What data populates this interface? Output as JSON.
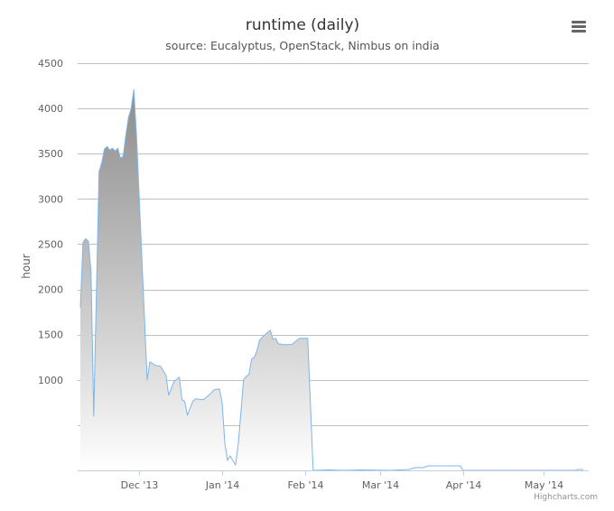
{
  "chart_data": {
    "type": "area",
    "title": "runtime (daily)",
    "subtitle": "source: Eucalyptus, OpenStack, Nimbus on india",
    "xlabel": "",
    "ylabel": "hour",
    "ylim": [
      0,
      4500
    ],
    "y_ticks": [
      {
        "value": 1000,
        "label": "1000"
      },
      {
        "value": 1500,
        "label": "1500"
      },
      {
        "value": 2000,
        "label": "2000"
      },
      {
        "value": 2500,
        "label": "2500"
      },
      {
        "value": 3000,
        "label": "3000"
      },
      {
        "value": 3500,
        "label": "3500"
      },
      {
        "value": 4000,
        "label": "4000"
      },
      {
        "value": 4500,
        "label": "4500"
      }
    ],
    "gridlines_at": [
      0,
      500,
      1000,
      1500,
      2000,
      2500,
      3000,
      3500,
      4000,
      4500
    ],
    "xlim": [
      "2013-11-08",
      "2014-05-18"
    ],
    "x_ticks": [
      {
        "date": "2013-12-01",
        "label": "Dec '13"
      },
      {
        "date": "2014-01-01",
        "label": "Jan '14"
      },
      {
        "date": "2014-02-01",
        "label": "Feb '14"
      },
      {
        "date": "2014-03-01",
        "label": "Mar '14"
      },
      {
        "date": "2014-04-01",
        "label": "Apr '14"
      },
      {
        "date": "2014-05-01",
        "label": "May '14"
      }
    ],
    "grid": true,
    "legend": "none",
    "series": [
      {
        "color": "#7cb5ec",
        "points": [
          [
            "2013-11-09",
            1800
          ],
          [
            "2013-11-10",
            2520
          ],
          [
            "2013-11-11",
            2560
          ],
          [
            "2013-11-12",
            2530
          ],
          [
            "2013-11-13",
            2200
          ],
          [
            "2013-11-14",
            600
          ],
          [
            "2013-11-16",
            3300
          ],
          [
            "2013-11-17",
            3400
          ],
          [
            "2013-11-18",
            3550
          ],
          [
            "2013-11-19",
            3580
          ],
          [
            "2013-11-20",
            3540
          ],
          [
            "2013-11-21",
            3560
          ],
          [
            "2013-11-22",
            3530
          ],
          [
            "2013-11-23",
            3560
          ],
          [
            "2013-11-24",
            3450
          ],
          [
            "2013-11-25",
            3470
          ],
          [
            "2013-11-26",
            3700
          ],
          [
            "2013-11-27",
            3900
          ],
          [
            "2013-11-28",
            4000
          ],
          [
            "2013-11-29",
            4210
          ],
          [
            "2013-11-30",
            3700
          ],
          [
            "2013-12-04",
            1000
          ],
          [
            "2013-12-05",
            1200
          ],
          [
            "2013-12-07",
            1160
          ],
          [
            "2013-12-09",
            1150
          ],
          [
            "2013-12-11",
            1050
          ],
          [
            "2013-12-12",
            830
          ],
          [
            "2013-12-14",
            980
          ],
          [
            "2013-12-16",
            1030
          ],
          [
            "2013-12-17",
            780
          ],
          [
            "2013-12-18",
            760
          ],
          [
            "2013-12-19",
            610
          ],
          [
            "2013-12-21",
            760
          ],
          [
            "2013-12-22",
            790
          ],
          [
            "2013-12-25",
            780
          ],
          [
            "2013-12-27",
            830
          ],
          [
            "2013-12-29",
            890
          ],
          [
            "2013-12-31",
            900
          ],
          [
            "2014-01-01",
            750
          ],
          [
            "2014-01-02",
            300
          ],
          [
            "2014-01-03",
            110
          ],
          [
            "2014-01-04",
            160
          ],
          [
            "2014-01-06",
            60
          ],
          [
            "2014-01-07",
            280
          ],
          [
            "2014-01-08",
            640
          ],
          [
            "2014-01-09",
            1000
          ],
          [
            "2014-01-10",
            1040
          ],
          [
            "2014-01-11",
            1060
          ],
          [
            "2014-01-12",
            1230
          ],
          [
            "2014-01-13",
            1250
          ],
          [
            "2014-01-14",
            1320
          ],
          [
            "2014-01-15",
            1440
          ],
          [
            "2014-01-17",
            1500
          ],
          [
            "2014-01-19",
            1550
          ],
          [
            "2014-01-20",
            1450
          ],
          [
            "2014-01-21",
            1460
          ],
          [
            "2014-01-22",
            1400
          ],
          [
            "2014-01-24",
            1390
          ],
          [
            "2014-01-27",
            1390
          ],
          [
            "2014-01-29",
            1440
          ],
          [
            "2014-01-30",
            1460
          ],
          [
            "2014-02-02",
            1460
          ],
          [
            "2014-02-04",
            0
          ],
          [
            "2014-02-10",
            5
          ],
          [
            "2014-02-15",
            0
          ],
          [
            "2014-02-22",
            5
          ],
          [
            "2014-03-05",
            0
          ],
          [
            "2014-03-12",
            10
          ],
          [
            "2014-03-14",
            30
          ],
          [
            "2014-03-17",
            30
          ],
          [
            "2014-03-19",
            50
          ],
          [
            "2014-03-31",
            50
          ],
          [
            "2014-04-01",
            0
          ],
          [
            "2014-05-13",
            0
          ],
          [
            "2014-05-14",
            10
          ],
          [
            "2014-05-16",
            10
          ]
        ]
      }
    ]
  },
  "menu": {
    "icon": "hamburger-menu-icon"
  },
  "credits": {
    "text": "Highcharts.com"
  }
}
